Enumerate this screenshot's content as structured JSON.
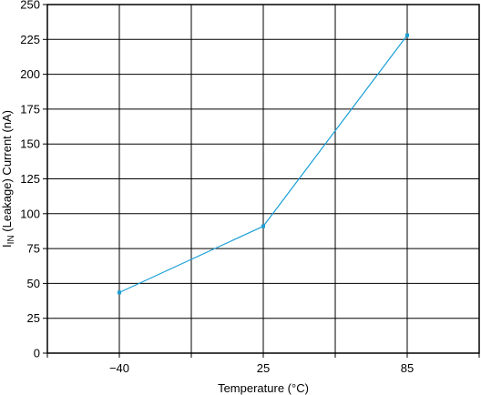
{
  "chart_data": {
    "type": "line",
    "xlabel": "Temperature (°C)",
    "ylabel_main": "I",
    "ylabel_sub": "IN",
    "ylabel_rest": " (Leakage) Current (nA)",
    "x_ticks": [
      "−40",
      "25",
      "85"
    ],
    "y_ticks": [
      "0",
      "25",
      "50",
      "75",
      "100",
      "125",
      "150",
      "175",
      "200",
      "225",
      "250"
    ],
    "ylim": [
      0,
      250
    ],
    "x_grid_lines": 6,
    "grid": true,
    "series": [
      {
        "x": [
          "−40",
          "25",
          "85"
        ],
        "values": [
          43.5,
          91,
          228
        ]
      }
    ],
    "colors": {
      "line": "#1a9fd6",
      "grid": "#000000"
    }
  }
}
